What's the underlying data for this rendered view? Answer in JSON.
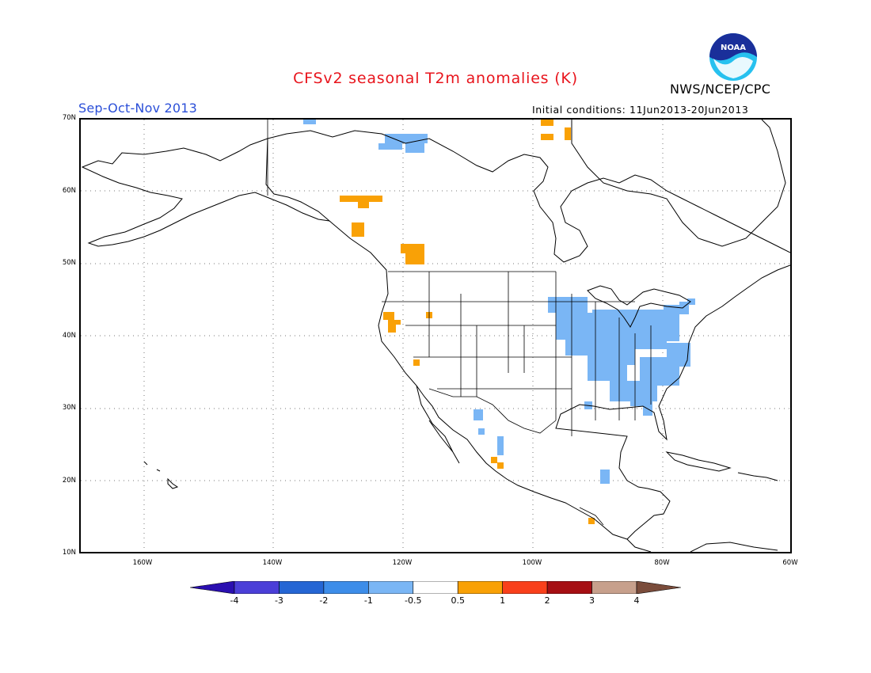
{
  "header": {
    "title": "CFSv2 seasonal T2m anomalies (K)",
    "agency": "NWS/NCEP/CPC",
    "period": "Sep-Oct-Nov 2013",
    "initial_conditions": "Initial conditions: 11Jun2013-20Jun2013",
    "logo_text": "NOAA"
  },
  "map": {
    "lat_labels": [
      "70N",
      "60N",
      "50N",
      "40N",
      "30N",
      "20N",
      "10N"
    ],
    "lon_labels": [
      "160W",
      "140W",
      "120W",
      "100W",
      "80W",
      "60W"
    ]
  },
  "colorbar": {
    "labels": [
      "-4",
      "-3",
      "-2",
      "-1",
      "-0.5",
      "0.5",
      "1",
      "2",
      "3",
      "4"
    ],
    "colors": [
      "#2a0fb0",
      "#4b3fd8",
      "#2566d4",
      "#3d8de9",
      "#7ab6f5",
      "#ffffff",
      "#f9a106",
      "#f9401b",
      "#a60f14",
      "#c7a08c",
      "#7a4c3b"
    ]
  },
  "colors": {
    "warm_anomaly": "#f9a106",
    "cool_anomaly": "#7ab6f5",
    "title_red": "#e8141c",
    "period_blue": "#2b4fd8"
  }
}
